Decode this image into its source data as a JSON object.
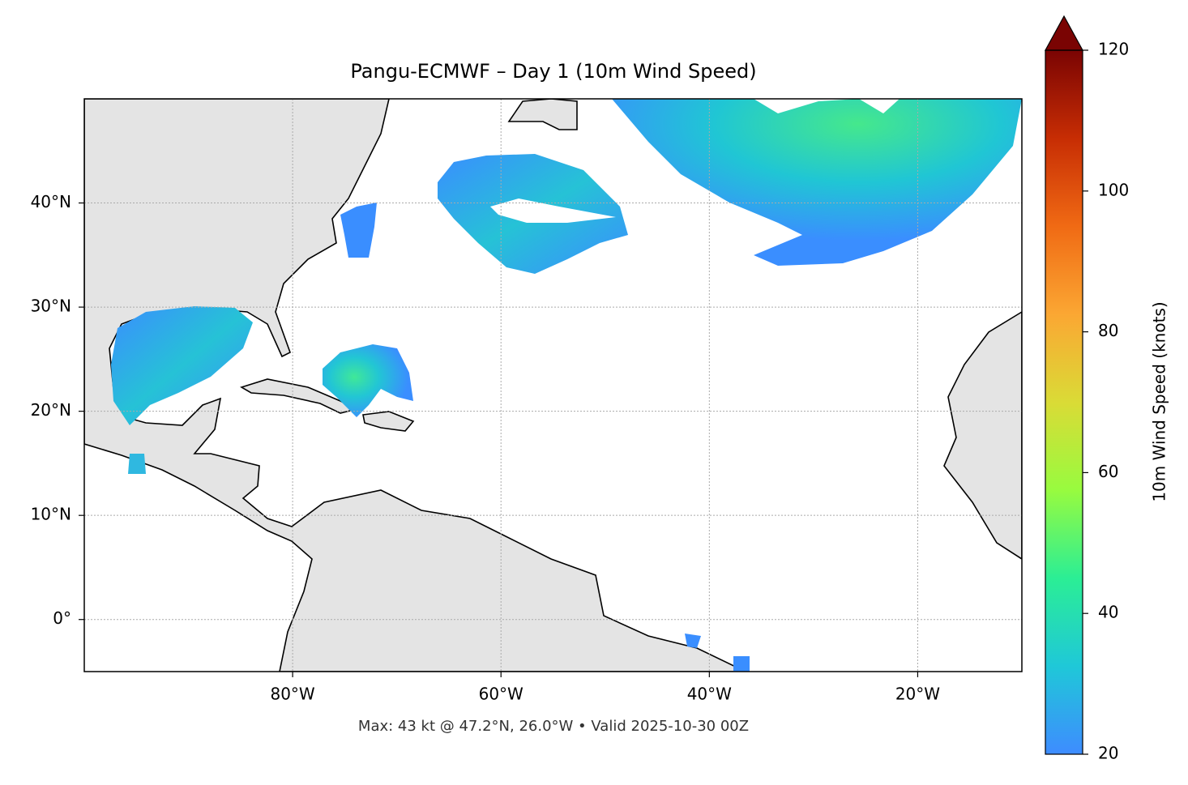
{
  "chart_data": {
    "type": "map",
    "title": "Pangu-ECMWF – Day 1 (10m Wind Speed)",
    "footer": "Max: 43 kt @ 47.2°N, 26.0°W • Valid 2025-10-30 00Z",
    "xlim": [
      -100,
      -10
    ],
    "ylim": [
      -5,
      50
    ],
    "xticks": [
      {
        "value": -80,
        "label": "80°W"
      },
      {
        "value": -60,
        "label": "60°W"
      },
      {
        "value": -40,
        "label": "40°W"
      },
      {
        "value": -20,
        "label": "20°W"
      }
    ],
    "yticks": [
      {
        "value": 0,
        "label": "0°"
      },
      {
        "value": 10,
        "label": "10°N"
      },
      {
        "value": 20,
        "label": "20°N"
      },
      {
        "value": 30,
        "label": "30°N"
      },
      {
        "value": 40,
        "label": "40°N"
      }
    ],
    "grid": true,
    "colorbar": {
      "label": "10m Wind Speed (knots)",
      "lim": [
        20,
        120
      ],
      "ticks": [
        20,
        40,
        60,
        80,
        100,
        120
      ],
      "colors": [
        "#3e8cff",
        "#1fc8d8",
        "#2bee95",
        "#98fb3f",
        "#dadb36",
        "#fba733",
        "#f06a14",
        "#c72d04",
        "#7a0403"
      ]
    }
  }
}
